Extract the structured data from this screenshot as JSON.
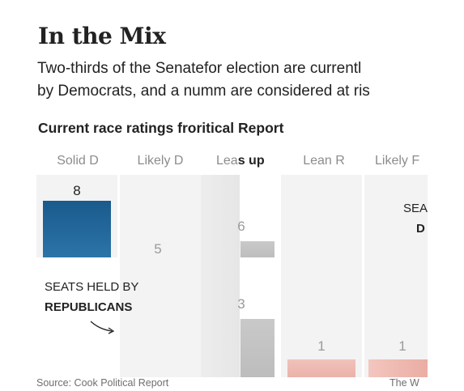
{
  "title": "In the Mix",
  "subtitle_line1": "Two-thirds of the Senatefor election are currentl",
  "subtitle_line2": "by Democrats, and a numm are considered at ris",
  "section_title": "Current race ratings froritical Report",
  "columns": [
    {
      "label": "Solid D",
      "bold": false
    },
    {
      "label": "Likely D",
      "bold": false
    },
    {
      "label": "Lea",
      "label_bold": "s up",
      "bold": false
    },
    {
      "label": "Lean R",
      "bold": false
    },
    {
      "label": "Likely F",
      "bold": false
    }
  ],
  "annotations": {
    "republicans_line1": "SEATS HELD BY",
    "republicans_line2": "REPUBLICANS",
    "democrats_line1": "SEA",
    "democrats_line2": "D"
  },
  "source_left": "Source: Cook Political Report",
  "source_right": "The W",
  "colors": {
    "democrat": "#2c74a8",
    "democrat_dark": "#1a5a8c",
    "republican": "#e8a39a",
    "tossup": "#b9b9b9",
    "column_bg": "#f3f3f3",
    "faint_label": "#9a9a9a"
  },
  "chart_data": {
    "type": "bar",
    "title": "In the Mix",
    "subtitle": "Current race ratings froritical Report",
    "categories": [
      "Solid D",
      "Likely D",
      "Leas up",
      "Lean R",
      "Likely F"
    ],
    "marks": [
      {
        "category": "Solid D",
        "party": "D",
        "value": 8,
        "label": "8"
      },
      {
        "category": "Likely D",
        "party": "D",
        "value": 5,
        "label": "5"
      },
      {
        "category": "Leas up",
        "party": "D",
        "value": 6,
        "label": "6"
      },
      {
        "category": "Leas up",
        "party": "R",
        "value": 3,
        "label": "3"
      },
      {
        "category": "Lean R",
        "party": "R",
        "value": 1,
        "label": "1"
      },
      {
        "category": "Likely F",
        "party": "R",
        "value": 1,
        "label": "1"
      }
    ]
  }
}
